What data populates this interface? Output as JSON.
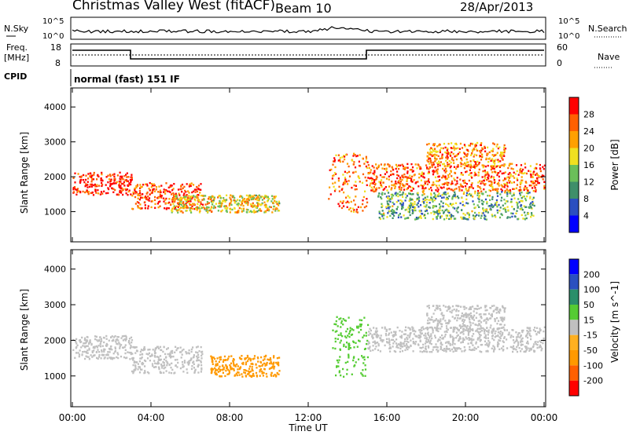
{
  "header": {
    "station": "Christmas Valley West (fitACF)",
    "beam": "Beam 10",
    "date": "28/Apr/2013"
  },
  "top_panels": {
    "nsky_label": "N.Sky",
    "nsearch_label": "N.Search",
    "freq_label_1": "Freq.",
    "freq_label_2": "[MHz]",
    "nave_label": "Nave",
    "cpid_label": "CPID",
    "cpid_value": "normal (fast) 151 IF",
    "noise_left_ticks": [
      "10^5",
      "10^0"
    ],
    "noise_right_ticks": [
      "10^5",
      "10^0"
    ],
    "freq_ticks": [
      "18",
      "8"
    ],
    "nave_ticks": [
      "60",
      "0"
    ]
  },
  "colors": {
    "power_scale": [
      "#0000ff",
      "#2b4fc0",
      "#3f8f6a",
      "#6bbf5a",
      "#f0e020",
      "#ffa000",
      "#ff6000",
      "#ff0000"
    ],
    "velocity_scale": [
      "#ff0000",
      "#ff6000",
      "#ff9900",
      "#ffb020",
      "#c0c0c0",
      "#55cc33",
      "#2a8f6a",
      "#2a50c0",
      "#0000ff"
    ],
    "range_scatter_grey": "#c0c0c0"
  },
  "chart_data": [
    {
      "type": "heatmap",
      "title": "",
      "xlabel": "",
      "ylabel": "Slant Range [km]",
      "xticks": [
        "00:00",
        "04:00",
        "08:00",
        "12:00",
        "16:00",
        "20:00",
        "00:00"
      ],
      "yticks": [
        "1000",
        "2000",
        "3000",
        "4000"
      ],
      "xlim_hours": [
        0,
        24
      ],
      "ylim_km": [
        180,
        4500
      ],
      "colorbar": {
        "label": "Power [dB]",
        "ticks": [
          "28",
          "24",
          "20",
          "16",
          "12",
          "8",
          "4"
        ],
        "range": [
          0,
          30
        ]
      },
      "echo_regions": [
        {
          "t0": 0.0,
          "t1": 3.0,
          "r0": 1500,
          "r1": 2150,
          "power": 28
        },
        {
          "t0": 3.0,
          "t1": 6.6,
          "r0": 1100,
          "r1": 1850,
          "power": 26
        },
        {
          "t0": 5.0,
          "t1": 10.5,
          "r0": 1000,
          "r1": 1500,
          "power": 18
        },
        {
          "t0": 13.0,
          "t1": 15.0,
          "r0": 1000,
          "r1": 2700,
          "power": 24
        },
        {
          "t0": 15.0,
          "t1": 24.0,
          "r0": 1600,
          "r1": 2400,
          "power": 24
        },
        {
          "t0": 18.0,
          "t1": 22.0,
          "r0": 2300,
          "r1": 3000,
          "power": 22
        },
        {
          "t0": 15.5,
          "t1": 23.5,
          "r0": 800,
          "r1": 1600,
          "power": 12
        }
      ]
    },
    {
      "type": "heatmap",
      "title": "",
      "xlabel": "Time UT",
      "ylabel": "Slant Range [km]",
      "xticks": [
        "00:00",
        "04:00",
        "08:00",
        "12:00",
        "16:00",
        "20:00",
        "00:00"
      ],
      "yticks": [
        "1000",
        "2000",
        "3000",
        "4000"
      ],
      "xlim_hours": [
        0,
        24
      ],
      "ylim_km": [
        180,
        4500
      ],
      "colorbar": {
        "label": "Velocity [m s^-1]",
        "ticks": [
          "200",
          "100",
          "50",
          "15",
          "-15",
          "-50",
          "-100",
          "-200"
        ],
        "range": [
          -250,
          250
        ]
      },
      "echo_regions": [
        {
          "t0": 0.0,
          "t1": 3.0,
          "r0": 1500,
          "r1": 2150,
          "velocity": 0
        },
        {
          "t0": 3.0,
          "t1": 6.6,
          "r0": 1100,
          "r1": 1850,
          "velocity": 0
        },
        {
          "t0": 7.0,
          "t1": 10.5,
          "r0": 1000,
          "r1": 1600,
          "velocity": -60
        },
        {
          "t0": 13.2,
          "t1": 15.0,
          "r0": 1000,
          "r1": 2700,
          "velocity": 40
        },
        {
          "t0": 15.0,
          "t1": 24.0,
          "r0": 1700,
          "r1": 2400,
          "velocity": 0
        },
        {
          "t0": 18.0,
          "t1": 22.0,
          "r0": 2300,
          "r1": 3000,
          "velocity": 0
        }
      ]
    }
  ]
}
